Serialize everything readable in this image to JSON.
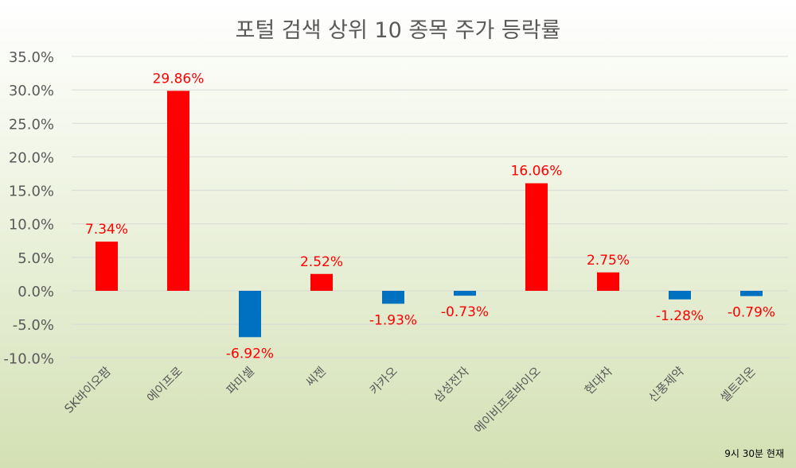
{
  "chart_data": {
    "type": "bar",
    "title": "포털 검색 상위 10 종목 주가 등락률",
    "categories": [
      "SK바이오팜",
      "에이프로",
      "파미셀",
      "씨젠",
      "카카오",
      "삼성전자",
      "에이비프로바이오",
      "현대차",
      "신풍제약",
      "셀트리온"
    ],
    "values": [
      7.34,
      29.86,
      -6.92,
      2.52,
      -1.93,
      -0.73,
      16.06,
      2.75,
      -1.28,
      -0.79
    ],
    "data_labels": [
      "7.34%",
      "29.86%",
      "-6.92%",
      "2.52%",
      "-1.93%",
      "-0.73%",
      "16.06%",
      "2.75%",
      "-1.28%",
      "-0.79%"
    ],
    "ylim": [
      -10,
      35
    ],
    "yticks": [
      -10,
      -5,
      0,
      5,
      10,
      15,
      20,
      25,
      30,
      35
    ],
    "ytick_labels": [
      "-10.0%",
      "-5.0%",
      "0.0%",
      "5.0%",
      "10.0%",
      "15.0%",
      "20.0%",
      "25.0%",
      "30.0%",
      "35.0%"
    ],
    "xlabel": "",
    "ylabel": "",
    "grid": true,
    "colors": {
      "positive": "#ff0000",
      "negative": "#0070c0",
      "label": "#ff0000"
    }
  },
  "footnote": "9시 30분 현재"
}
